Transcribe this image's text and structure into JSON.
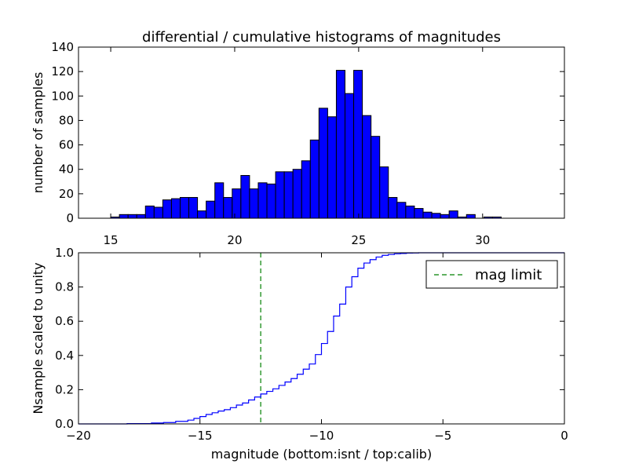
{
  "chart_data": [
    {
      "type": "bar",
      "title": "differential / cumulative histograms of magnitudes",
      "xlabel": "",
      "ylabel": "number of samples",
      "xlim": [
        13.7,
        33.3
      ],
      "ylim": [
        0,
        140
      ],
      "xticks": [
        15,
        20,
        25,
        30
      ],
      "yticks": [
        0,
        20,
        40,
        60,
        80,
        100,
        120,
        140
      ],
      "bin_start": 15.0,
      "bin_width": 0.35,
      "values": [
        1,
        3,
        3,
        3,
        10,
        9,
        15,
        16,
        17,
        17,
        6,
        14,
        29,
        17,
        24,
        35,
        24,
        29,
        28,
        38,
        38,
        40,
        47,
        64,
        90,
        83,
        121,
        102,
        121,
        84,
        67,
        42,
        17,
        13,
        10,
        8,
        5,
        4,
        3,
        6,
        1,
        3,
        0,
        1,
        1,
        0,
        0,
        0,
        0,
        0,
        0,
        0,
        0,
        0,
        0,
        0,
        0,
        0,
        0,
        0,
        0,
        0,
        0,
        0,
        0,
        0,
        1,
        0
      ],
      "bar_color": "#0000ff"
    },
    {
      "type": "line",
      "step": true,
      "xlabel": "magnitude (bottom:isnt / top:calib)",
      "ylabel": "Nsample scaled to unity",
      "xlim": [
        -20,
        0
      ],
      "ylim": [
        0,
        1
      ],
      "xticks": [
        -20,
        -15,
        -10,
        -5,
        0
      ],
      "yticks": [
        0.0,
        0.2,
        0.4,
        0.6,
        0.8,
        1.0
      ],
      "series": [
        {
          "name": "cumulative",
          "color": "#0000ff",
          "x": [
            -20,
            -18,
            -17,
            -16.5,
            -16,
            -15.5,
            -15.25,
            -15,
            -14.75,
            -14.5,
            -14.25,
            -14,
            -13.75,
            -13.5,
            -13.25,
            -13,
            -12.75,
            -12.5,
            -12.25,
            -12,
            -11.75,
            -11.5,
            -11.25,
            -11,
            -10.75,
            -10.5,
            -10.25,
            -10,
            -9.75,
            -9.5,
            -9.25,
            -9,
            -8.75,
            -8.5,
            -8.25,
            -8,
            -7.75,
            -7.5,
            -7.25,
            -7,
            -6.75,
            -6.5,
            -6.25,
            -6,
            0
          ],
          "y": [
            0.0,
            0.002,
            0.005,
            0.008,
            0.015,
            0.022,
            0.032,
            0.043,
            0.055,
            0.065,
            0.075,
            0.083,
            0.095,
            0.11,
            0.122,
            0.14,
            0.157,
            0.175,
            0.19,
            0.205,
            0.225,
            0.245,
            0.265,
            0.29,
            0.32,
            0.35,
            0.405,
            0.47,
            0.54,
            0.63,
            0.7,
            0.8,
            0.86,
            0.91,
            0.94,
            0.96,
            0.975,
            0.985,
            0.99,
            0.994,
            0.996,
            0.998,
            0.999,
            1.0,
            1.0
          ]
        },
        {
          "name": "mag limit",
          "color": "#008000",
          "dashed": true,
          "x_value": -12.5
        }
      ],
      "legend": {
        "entries": [
          "mag limit"
        ],
        "position": "top-right"
      }
    }
  ]
}
